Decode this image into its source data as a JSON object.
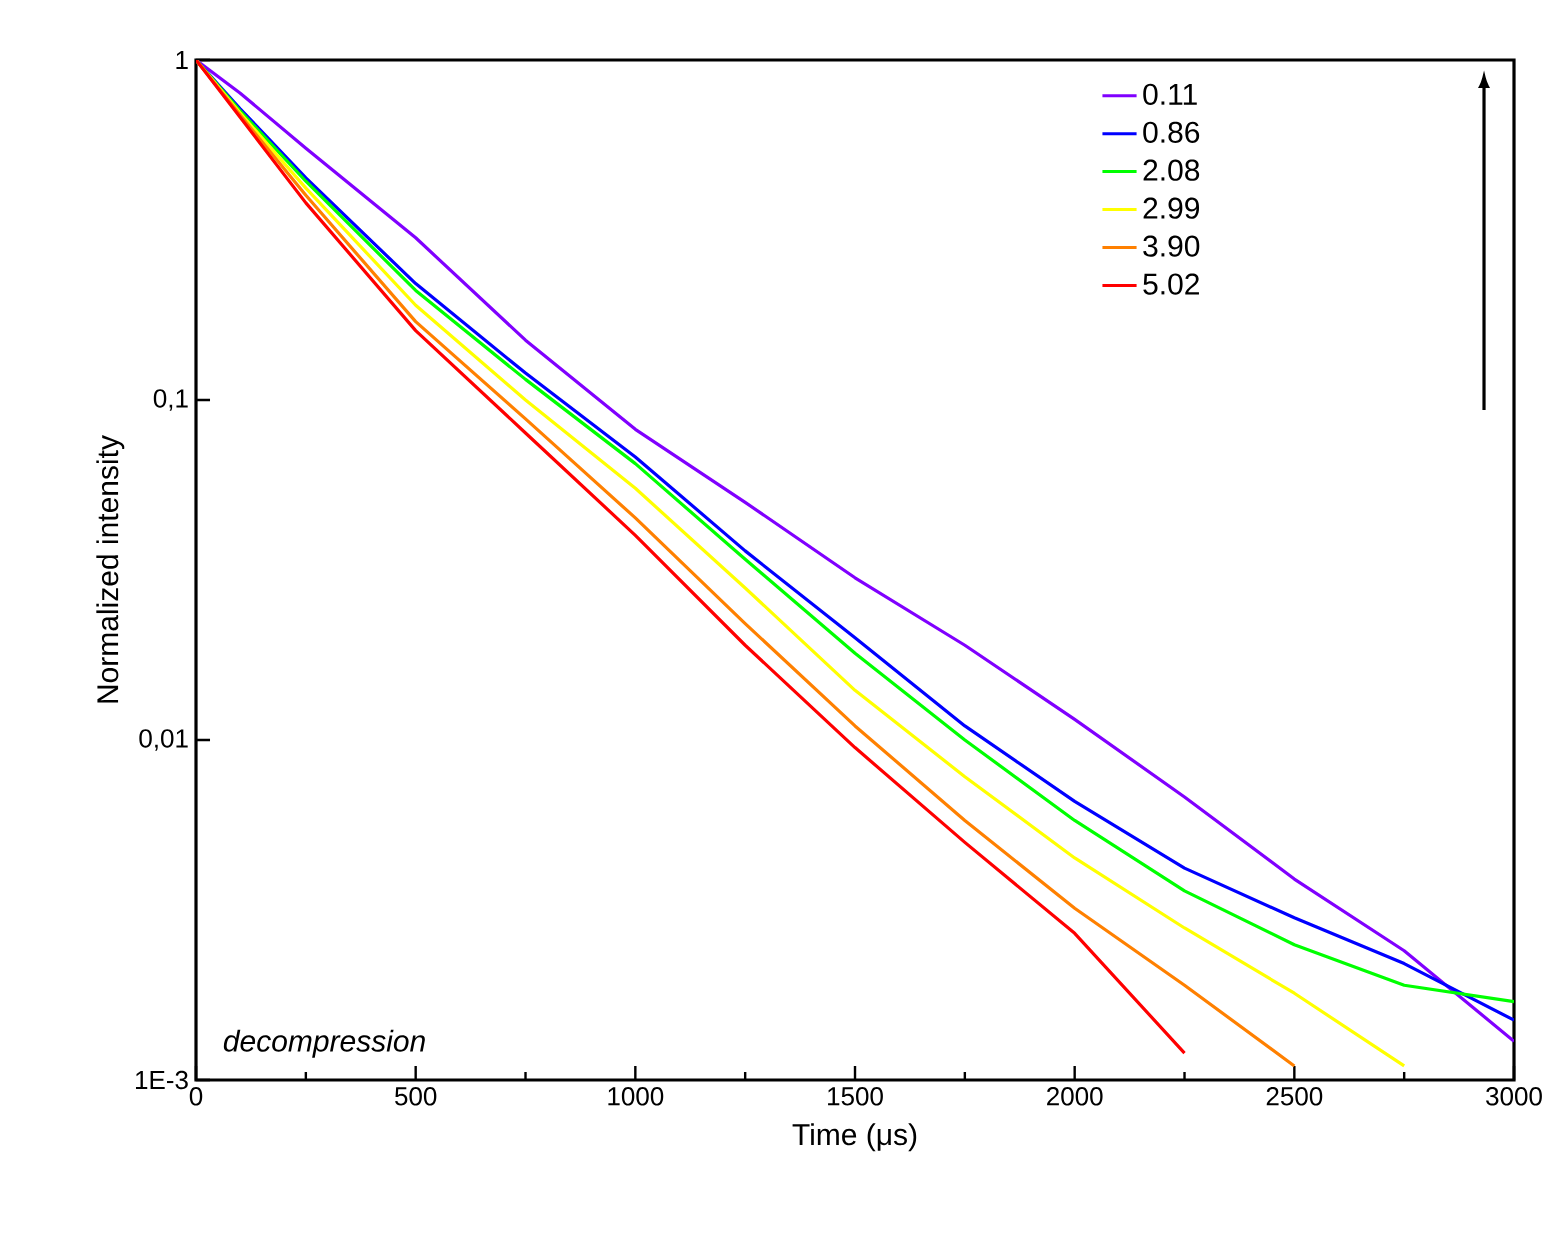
{
  "chart_data": {
    "type": "line",
    "xlabel": "Time (μs)",
    "ylabel": "Normalized intensity",
    "log": "y",
    "xlim": [
      0,
      3000
    ],
    "xticks": [
      0,
      500,
      1000,
      1500,
      2000,
      2500,
      3000
    ],
    "ylim": [
      0.001,
      1
    ],
    "yticks": [
      {
        "value": 1,
        "label": "1"
      },
      {
        "value": 0.1,
        "label": "0,1"
      },
      {
        "value": 0.01,
        "label": "0,01"
      },
      {
        "value": 0.001,
        "label": "1E-3"
      }
    ],
    "legend": "top right",
    "grid": false,
    "marker": "none",
    "line_style": "solid",
    "annotations": [
      "decompression"
    ],
    "series": [
      {
        "name": "0.11",
        "color": "#8000ff",
        "x": [
          0,
          100,
          250,
          500,
          750,
          1000,
          1250,
          1500,
          1750,
          2000,
          2250,
          2500,
          2750,
          3000
        ],
        "values": [
          1,
          0.8,
          0.55,
          0.3,
          0.15,
          0.082,
          0.05,
          0.03,
          0.019,
          0.0115,
          0.0068,
          0.0039,
          0.0024,
          0.0013
        ]
      },
      {
        "name": "0.86",
        "color": "#0000ff",
        "x": [
          0,
          100,
          250,
          500,
          750,
          1000,
          1250,
          1500,
          1750,
          2000,
          2250,
          2500,
          2750,
          3000
        ],
        "values": [
          1,
          0.72,
          0.45,
          0.22,
          0.12,
          0.068,
          0.036,
          0.02,
          0.011,
          0.0066,
          0.0042,
          0.003,
          0.0022,
          0.0015
        ]
      },
      {
        "name": "2.08",
        "color": "#00ff00",
        "x": [
          0,
          100,
          250,
          500,
          750,
          1000,
          1250,
          1500,
          1750,
          2000,
          2250,
          2500,
          2750,
          3000
        ],
        "values": [
          1,
          0.71,
          0.44,
          0.21,
          0.115,
          0.065,
          0.034,
          0.018,
          0.01,
          0.0058,
          0.0036,
          0.0025,
          0.0019,
          0.0017
        ]
      },
      {
        "name": "2.99",
        "color": "#ffff00",
        "x": [
          0,
          100,
          250,
          500,
          750,
          1000,
          1250,
          1500,
          1750,
          2000,
          2250,
          2500,
          2750
        ],
        "values": [
          1,
          0.7,
          0.42,
          0.19,
          0.1,
          0.055,
          0.028,
          0.014,
          0.0078,
          0.0045,
          0.0028,
          0.0018,
          0.0011
        ]
      },
      {
        "name": "3.90",
        "color": "#ff8000",
        "x": [
          0,
          100,
          250,
          500,
          750,
          1000,
          1250,
          1500,
          1750,
          2000,
          2250,
          2500
        ],
        "values": [
          1,
          0.69,
          0.4,
          0.17,
          0.088,
          0.045,
          0.022,
          0.011,
          0.0058,
          0.0032,
          0.0019,
          0.0011
        ]
      },
      {
        "name": "5.02",
        "color": "#ff0000",
        "x": [
          0,
          100,
          250,
          500,
          750,
          1000,
          1250,
          1500,
          1750,
          2000,
          2250
        ],
        "values": [
          1,
          0.68,
          0.38,
          0.16,
          0.08,
          0.04,
          0.019,
          0.0095,
          0.005,
          0.0027,
          0.0012
        ]
      }
    ]
  }
}
